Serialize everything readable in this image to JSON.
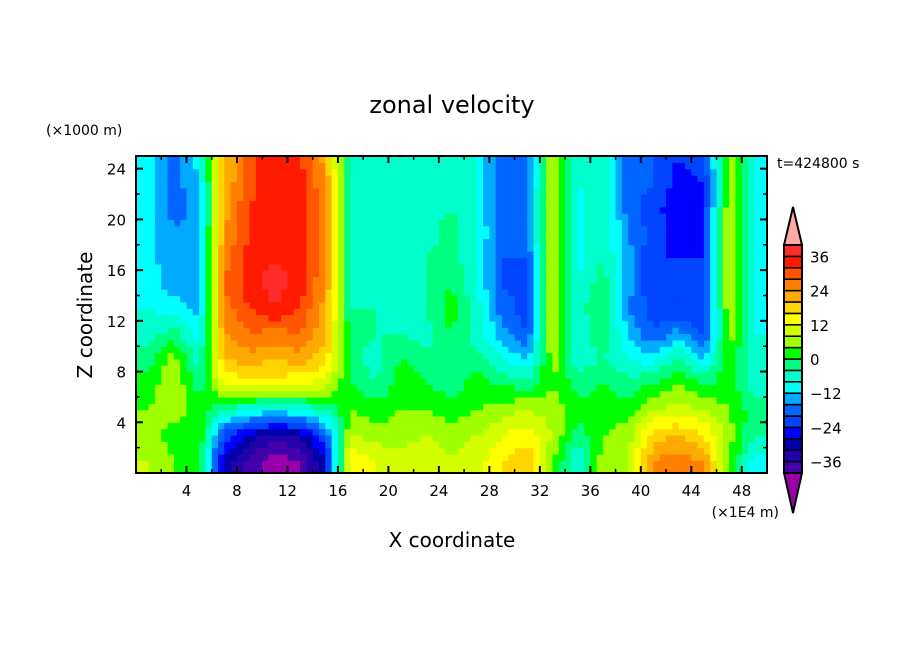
{
  "chart_data": {
    "type": "heatmap",
    "title": "zonal velocity",
    "xlabel": "X coordinate",
    "ylabel": "Z coordinate",
    "x_unit_label": "(×1E4 m)",
    "y_unit_label": "(×1000 m)",
    "time_label": "t=424800 s",
    "xlim": [
      0,
      50
    ],
    "ylim": [
      0,
      25
    ],
    "x_ticks": [
      4,
      8,
      12,
      16,
      20,
      24,
      28,
      32,
      36,
      40,
      44,
      48
    ],
    "y_ticks": [
      4,
      8,
      12,
      16,
      20,
      24
    ],
    "x_centers": [
      1,
      3,
      5,
      7,
      9,
      11,
      13,
      15,
      17,
      19,
      21,
      23,
      25,
      27,
      29,
      31,
      33,
      35,
      37,
      39,
      41,
      43,
      45,
      47,
      49
    ],
    "z_centers": [
      1,
      3,
      5,
      7,
      9,
      11,
      13,
      15,
      17,
      19,
      21,
      23,
      25
    ],
    "values": [
      [
        8,
        4,
        0,
        -30,
        -38,
        -42,
        -40,
        -28,
        16,
        12,
        10,
        12,
        8,
        10,
        16,
        20,
        4,
        -8,
        6,
        8,
        24,
        26,
        24,
        4,
        -10
      ],
      [
        6,
        2,
        4,
        -22,
        -30,
        -34,
        -32,
        -20,
        8,
        6,
        6,
        8,
        6,
        8,
        12,
        14,
        8,
        -2,
        4,
        6,
        18,
        20,
        16,
        6,
        -4
      ],
      [
        4,
        6,
        2,
        -4,
        -8,
        -10,
        -8,
        -4,
        4,
        2,
        4,
        4,
        2,
        4,
        6,
        8,
        6,
        2,
        2,
        2,
        8,
        10,
        8,
        4,
        -2
      ],
      [
        2,
        8,
        -2,
        12,
        14,
        14,
        12,
        10,
        0,
        -4,
        2,
        0,
        -2,
        2,
        0,
        -2,
        4,
        -2,
        0,
        -2,
        0,
        4,
        0,
        2,
        -6
      ],
      [
        -2,
        6,
        -6,
        20,
        22,
        20,
        22,
        18,
        -2,
        -6,
        0,
        -2,
        -4,
        -2,
        -8,
        -12,
        6,
        -6,
        -4,
        -8,
        -10,
        -2,
        -12,
        4,
        -8
      ],
      [
        -6,
        -2,
        -10,
        24,
        28,
        26,
        28,
        20,
        -2,
        -4,
        -4,
        -6,
        0,
        -6,
        -14,
        -20,
        8,
        -8,
        0,
        -12,
        -20,
        -14,
        -22,
        6,
        -8
      ],
      [
        -8,
        -10,
        -14,
        26,
        32,
        36,
        32,
        22,
        -4,
        -4,
        -6,
        -4,
        2,
        -6,
        -18,
        -22,
        8,
        -6,
        0,
        -16,
        -22,
        -24,
        -24,
        8,
        -10
      ],
      [
        -10,
        -14,
        -16,
        28,
        34,
        38,
        34,
        24,
        -4,
        -6,
        -6,
        -4,
        0,
        -8,
        -20,
        -22,
        10,
        -8,
        -2,
        -14,
        -24,
        -22,
        -24,
        10,
        -10
      ],
      [
        -10,
        -16,
        -14,
        26,
        34,
        36,
        34,
        26,
        -6,
        -6,
        -8,
        -4,
        -2,
        -8,
        -20,
        -20,
        10,
        -10,
        -4,
        -14,
        -24,
        -24,
        -24,
        10,
        -10
      ],
      [
        -10,
        -16,
        -14,
        24,
        32,
        36,
        34,
        26,
        -6,
        -8,
        -8,
        -6,
        -2,
        -8,
        -18,
        -18,
        10,
        -10,
        -4,
        -16,
        -22,
        -26,
        -24,
        8,
        -10
      ],
      [
        -10,
        -18,
        -14,
        22,
        32,
        36,
        34,
        26,
        -6,
        -8,
        -8,
        -6,
        -4,
        -8,
        -20,
        -18,
        10,
        -10,
        -4,
        -18,
        -22,
        -28,
        -24,
        8,
        -10
      ],
      [
        -10,
        -18,
        -12,
        20,
        30,
        36,
        34,
        24,
        -6,
        -8,
        -8,
        -6,
        -4,
        -8,
        -20,
        -18,
        8,
        -8,
        -4,
        -18,
        -20,
        -26,
        -24,
        6,
        -10
      ],
      [
        -10,
        -18,
        -10,
        20,
        30,
        36,
        32,
        22,
        -6,
        -8,
        -8,
        -6,
        -4,
        -8,
        -20,
        -18,
        8,
        -8,
        -4,
        -18,
        -20,
        -24,
        -22,
        6,
        -10
      ]
    ],
    "colorbar": {
      "levels": [
        -40,
        -36,
        -32,
        -28,
        -24,
        -20,
        -16,
        -12,
        -8,
        -4,
        0,
        4,
        8,
        12,
        16,
        20,
        24,
        28,
        32,
        36,
        40
      ],
      "colors": [
        "#4400aa",
        "#2200aa",
        "#0000aa",
        "#0000ff",
        "#0044ff",
        "#0066ff",
        "#00aaff",
        "#00ffff",
        "#00ffcc",
        "#00ff80",
        "#00ff00",
        "#a0ff00",
        "#d4ff00",
        "#ffff00",
        "#ffd500",
        "#ffaa00",
        "#ff7f00",
        "#ff5500",
        "#ff1a00",
        "#ff2a2a"
      ],
      "over_color": "#ffa8a8",
      "under_color": "#9900aa",
      "tick_labels": [
        "36",
        "24",
        "12",
        "0",
        "−12",
        "−24",
        "−36"
      ],
      "tick_values": [
        36,
        24,
        12,
        0,
        -12,
        -24,
        -36
      ]
    },
    "x_tick_labels": [
      "4",
      "8",
      "12",
      "16",
      "20",
      "24",
      "28",
      "32",
      "36",
      "40",
      "44",
      "48"
    ],
    "y_tick_labels": [
      "4",
      "8",
      "12",
      "16",
      "20",
      "24"
    ],
    "grid": false
  }
}
